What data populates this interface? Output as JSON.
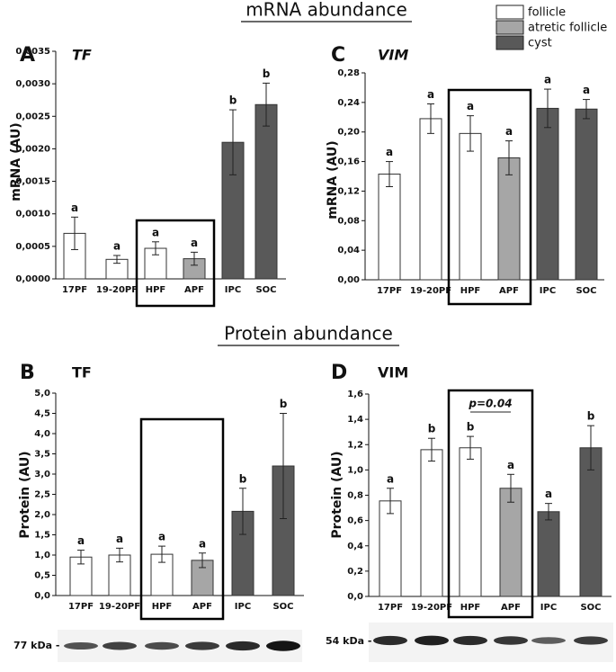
{
  "headings": {
    "mrna": "mRNA abundance",
    "protein": "Protein abundance"
  },
  "legend": [
    {
      "name": "follicle",
      "color": "#ffffff"
    },
    {
      "name": "atretic follicle",
      "color": "#a6a6a6"
    },
    {
      "name": "cyst",
      "color": "#595959"
    }
  ],
  "chart_data": [
    {
      "type": "bar",
      "panel": "A",
      "title": "TF",
      "title_style": "italic",
      "ylabel": "mRNA (AU)",
      "categories": [
        "17PF",
        "19-20PF",
        "HPF",
        "APF",
        "IPC",
        "SOC"
      ],
      "values": [
        0.0007,
        0.0003,
        0.00047,
        0.00031,
        0.0021,
        0.00268
      ],
      "errors": [
        0.00025,
        6e-05,
        0.0001,
        0.0001,
        0.0005,
        0.00033
      ],
      "annotations": [
        "a",
        "a",
        "a",
        "a",
        "b",
        "b"
      ],
      "colors": [
        "#ffffff",
        "#ffffff",
        "#ffffff",
        "#a6a6a6",
        "#595959",
        "#595959"
      ],
      "ylim": [
        0,
        0.0035
      ],
      "yticks": [
        {
          "value": 0,
          "label": "0,0000"
        },
        {
          "value": 0.0005,
          "label": "0,0005"
        },
        {
          "value": 0.001,
          "label": "0,0010"
        },
        {
          "value": 0.0015,
          "label": "0,0015"
        },
        {
          "value": 0.002,
          "label": "0,0020"
        },
        {
          "value": 0.0025,
          "label": "0,0025"
        },
        {
          "value": 0.003,
          "label": "0,0030"
        },
        {
          "value": 0.0035,
          "label": "0,0035"
        }
      ],
      "grid": false
    },
    {
      "type": "bar",
      "panel": "C",
      "title": "VIM",
      "title_style": "italic",
      "ylabel": "mRNA  (AU)",
      "categories": [
        "17PF",
        "19-20PF",
        "HPF",
        "APF",
        "IPC",
        "SOC"
      ],
      "values": [
        0.143,
        0.218,
        0.198,
        0.165,
        0.232,
        0.231
      ],
      "errors": [
        0.017,
        0.02,
        0.024,
        0.023,
        0.026,
        0.013
      ],
      "annotations": [
        "a",
        "a",
        "a",
        "a",
        "a",
        "a"
      ],
      "colors": [
        "#ffffff",
        "#ffffff",
        "#ffffff",
        "#a6a6a6",
        "#595959",
        "#595959"
      ],
      "ylim": [
        0,
        0.28
      ],
      "yticks": [
        {
          "value": 0,
          "label": "0,00"
        },
        {
          "value": 0.04,
          "label": "0,04"
        },
        {
          "value": 0.08,
          "label": "0,08"
        },
        {
          "value": 0.12,
          "label": "0,12"
        },
        {
          "value": 0.16,
          "label": "0,16"
        },
        {
          "value": 0.2,
          "label": "0,20"
        },
        {
          "value": 0.24,
          "label": "0,24"
        },
        {
          "value": 0.28,
          "label": "0,28"
        }
      ],
      "grid": false
    },
    {
      "type": "bar",
      "panel": "B",
      "title": "TF",
      "title_style": "normal",
      "ylabel": "Protein (AU)",
      "categories": [
        "17PF",
        "19-20PF",
        "HPF",
        "APF",
        "IPC",
        "SOC"
      ],
      "values": [
        0.95,
        1.0,
        1.02,
        0.87,
        2.08,
        3.2
      ],
      "errors": [
        0.17,
        0.17,
        0.2,
        0.18,
        0.57,
        1.3
      ],
      "annotations": [
        "a",
        "a",
        "a",
        "a",
        "b",
        "b"
      ],
      "colors": [
        "#ffffff",
        "#ffffff",
        "#ffffff",
        "#a6a6a6",
        "#595959",
        "#595959"
      ],
      "ylim": [
        0,
        5
      ],
      "yticks": [
        {
          "value": 0,
          "label": "0,0"
        },
        {
          "value": 0.5,
          "label": "0,5"
        },
        {
          "value": 1,
          "label": "1,0"
        },
        {
          "value": 1.5,
          "label": "1,5"
        },
        {
          "value": 2,
          "label": "2,0"
        },
        {
          "value": 2.5,
          "label": "2,5"
        },
        {
          "value": 3,
          "label": "3,0"
        },
        {
          "value": 3.5,
          "label": "3,5"
        },
        {
          "value": 4,
          "label": "4,0"
        },
        {
          "value": 4.5,
          "label": "4,5"
        },
        {
          "value": 5,
          "label": "5,0"
        }
      ],
      "grid": false,
      "blot_label": "77 kDa -"
    },
    {
      "type": "bar",
      "panel": "D",
      "title": "VIM",
      "title_style": "normal",
      "ylabel": "Protein (AU)",
      "categories": [
        "17PF",
        "19-20PF",
        "HPF",
        "APF",
        "IPC",
        "SOC"
      ],
      "values": [
        0.755,
        1.16,
        1.175,
        0.855,
        0.67,
        1.175
      ],
      "errors": [
        0.1,
        0.09,
        0.09,
        0.11,
        0.065,
        0.175
      ],
      "annotations": [
        "a",
        "b",
        "b",
        "a",
        "a",
        "b"
      ],
      "colors": [
        "#ffffff",
        "#ffffff",
        "#ffffff",
        "#a6a6a6",
        "#595959",
        "#595959"
      ],
      "ylim": [
        0,
        1.6
      ],
      "yticks": [
        {
          "value": 0,
          "label": "0,0"
        },
        {
          "value": 0.2,
          "label": "0,2"
        },
        {
          "value": 0.4,
          "label": "0,4"
        },
        {
          "value": 0.6,
          "label": "0,6"
        },
        {
          "value": 0.8,
          "label": "0,8"
        },
        {
          "value": 1,
          "label": "1,0"
        },
        {
          "value": 1.2,
          "label": "1,2"
        },
        {
          "value": 1.4,
          "label": "1,4"
        },
        {
          "value": 1.6,
          "label": "1,6"
        }
      ],
      "grid": false,
      "blot_label": "54 kDa -",
      "comparison": "p=0.04"
    }
  ]
}
